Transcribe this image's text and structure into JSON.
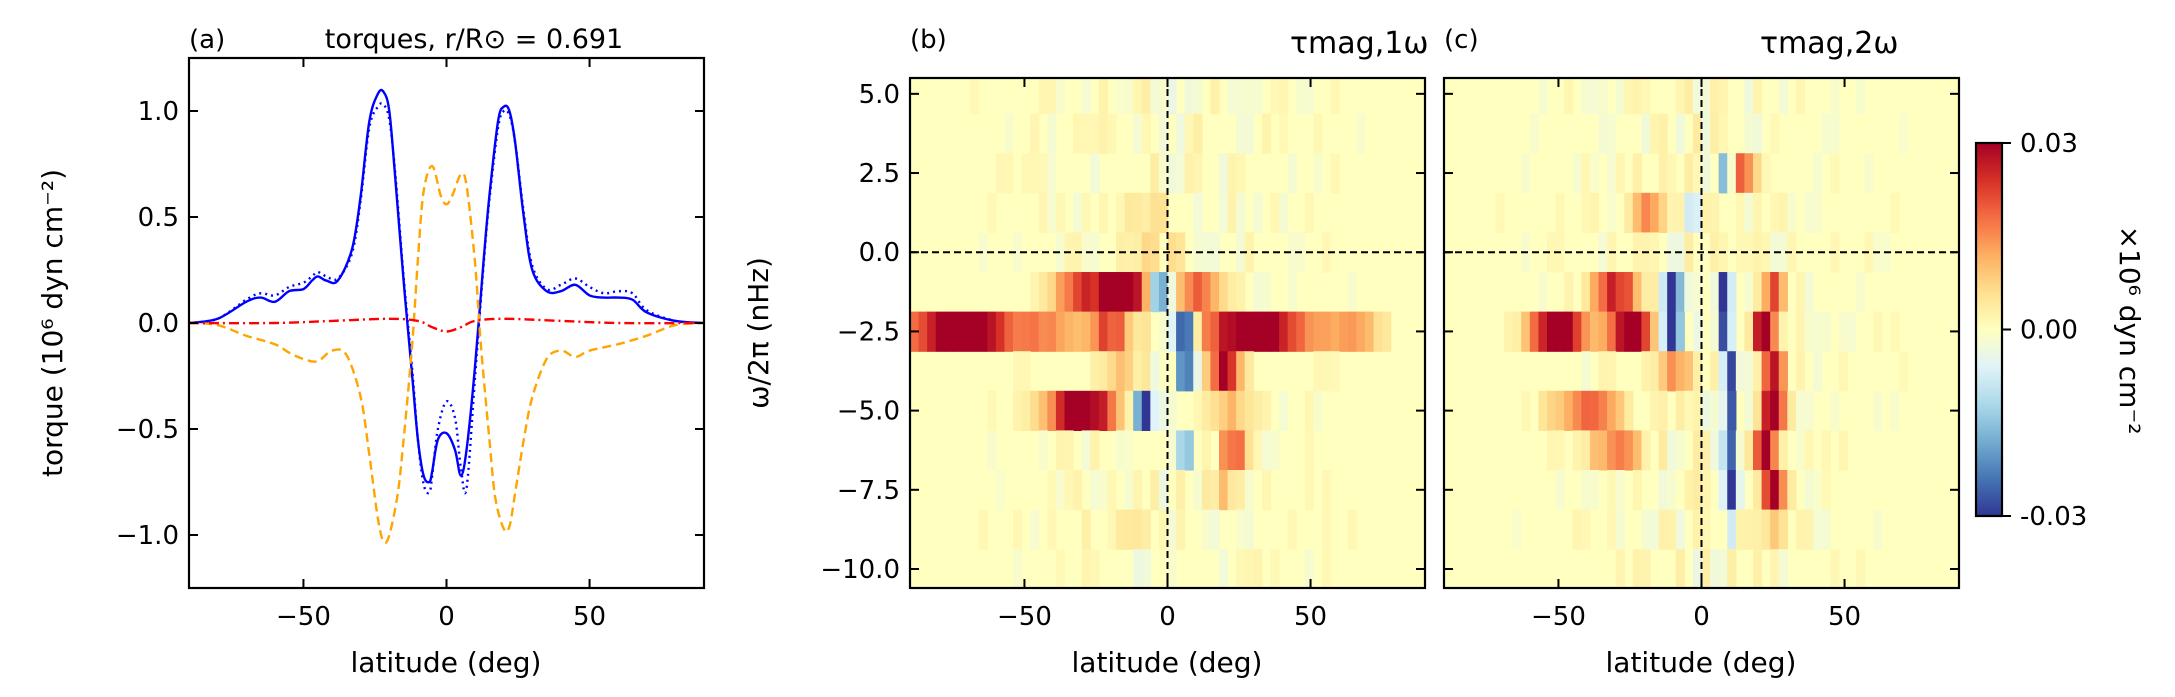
{
  "chart_data": [
    {
      "panel": "(a)",
      "type": "line",
      "title": "torques, r/R⊙ = 0.691",
      "xlabel": "latitude (deg)",
      "ylabel": "torque (10⁶ dyn cm⁻²)",
      "xlim": [
        -90,
        90
      ],
      "ylim": [
        -1.25,
        1.25
      ],
      "xticks": [
        -50,
        0,
        50
      ],
      "yticks": [
        -1.0,
        -0.5,
        0.0,
        0.5,
        1.0
      ],
      "xtick_labels": [
        "−50",
        "0",
        "50"
      ],
      "ytick_labels": [
        "−1.0",
        "−0.5",
        "0.0",
        "0.5",
        "1.0"
      ],
      "grid": false,
      "series": [
        {
          "color": "#0000ff",
          "style": "solid",
          "x": [
            -90,
            -80,
            -70,
            -65,
            -60,
            -55,
            -50,
            -47,
            -45,
            -42,
            -38,
            -33,
            -30,
            -27,
            -24,
            -22,
            -20,
            -18,
            -15,
            -12,
            -10,
            -8,
            -6,
            -5,
            -3,
            0,
            3,
            5,
            7,
            10,
            13,
            15,
            18,
            20,
            22,
            24,
            27,
            30,
            35,
            40,
            45,
            50,
            55,
            60,
            65,
            70,
            80,
            90
          ],
          "y": [
            0,
            0.02,
            0.1,
            0.12,
            0.1,
            0.15,
            0.16,
            0.2,
            0.22,
            0.2,
            0.2,
            0.35,
            0.6,
            0.95,
            1.08,
            1.09,
            1.0,
            0.7,
            0.2,
            -0.25,
            -0.55,
            -0.72,
            -0.75,
            -0.7,
            -0.55,
            -0.52,
            -0.6,
            -0.72,
            -0.6,
            -0.2,
            0.3,
            0.6,
            0.95,
            1.02,
            1.0,
            0.85,
            0.5,
            0.25,
            0.15,
            0.15,
            0.18,
            0.13,
            0.12,
            0.12,
            0.11,
            0.05,
            0.01,
            0
          ]
        },
        {
          "color": "#0000ff",
          "style": "dotted",
          "x": [
            -90,
            -80,
            -70,
            -65,
            -60,
            -55,
            -50,
            -47,
            -45,
            -42,
            -38,
            -33,
            -30,
            -27,
            -24,
            -22,
            -20,
            -18,
            -15,
            -12,
            -10,
            -8,
            -6,
            -5,
            -3,
            0,
            3,
            5,
            7,
            10,
            13,
            15,
            18,
            20,
            22,
            24,
            27,
            30,
            35,
            40,
            45,
            50,
            55,
            60,
            65,
            70,
            80,
            90
          ],
          "y": [
            0,
            0.02,
            0.11,
            0.14,
            0.13,
            0.17,
            0.19,
            0.22,
            0.24,
            0.22,
            0.21,
            0.33,
            0.58,
            0.92,
            1.02,
            1.03,
            0.96,
            0.72,
            0.22,
            -0.22,
            -0.55,
            -0.76,
            -0.8,
            -0.72,
            -0.5,
            -0.37,
            -0.45,
            -0.68,
            -0.78,
            -0.25,
            0.28,
            0.58,
            0.92,
            1.0,
            0.98,
            0.85,
            0.52,
            0.27,
            0.16,
            0.18,
            0.21,
            0.17,
            0.14,
            0.15,
            0.14,
            0.06,
            0.01,
            0
          ]
        },
        {
          "color": "#ffa500",
          "style": "dashed",
          "x": [
            -90,
            -80,
            -70,
            -60,
            -55,
            -50,
            -45,
            -40,
            -35,
            -30,
            -27,
            -24,
            -22,
            -20,
            -17,
            -15,
            -12,
            -10,
            -8,
            -5,
            -2,
            0,
            2,
            5,
            7,
            10,
            12,
            15,
            17,
            20,
            22,
            24,
            27,
            30,
            35,
            40,
            45,
            50,
            60,
            70,
            80,
            90
          ],
          "y": [
            0,
            -0.01,
            -0.06,
            -0.1,
            -0.14,
            -0.17,
            -0.18,
            -0.13,
            -0.15,
            -0.35,
            -0.62,
            -0.92,
            -1.03,
            -1.0,
            -0.8,
            -0.55,
            -0.1,
            0.3,
            0.62,
            0.74,
            0.6,
            0.56,
            0.6,
            0.7,
            0.65,
            0.28,
            -0.1,
            -0.55,
            -0.82,
            -0.97,
            -0.96,
            -0.8,
            -0.55,
            -0.35,
            -0.17,
            -0.13,
            -0.16,
            -0.13,
            -0.1,
            -0.06,
            -0.01,
            0
          ]
        },
        {
          "color": "#ff0000",
          "style": "dashdot",
          "x": [
            -90,
            -60,
            -40,
            -20,
            -10,
            -5,
            0,
            5,
            10,
            20,
            40,
            60,
            90
          ],
          "y": [
            0,
            0,
            0.01,
            0.02,
            0.01,
            -0.02,
            -0.04,
            -0.02,
            0.01,
            0.02,
            0.01,
            0,
            0
          ]
        }
      ]
    },
    {
      "panel": "(b)",
      "type": "heatmap",
      "title": "τmag,1ω",
      "xlabel": "latitude (deg)",
      "ylabel": "ω/2π (nHz)",
      "xlim": [
        -90,
        90
      ],
      "ylim": [
        -10.6,
        5.5
      ],
      "xticks": [
        -50,
        0,
        50
      ],
      "xtick_labels": [
        "−50",
        "0",
        "50"
      ],
      "yticks": [
        5.0,
        2.5,
        0.0,
        -2.5,
        -5.0,
        -7.5,
        -10.0
      ],
      "ytick_labels": [
        "5.0",
        "2.5",
        "0.0",
        "−2.5",
        "−5.0",
        "−7.5",
        "−10.0"
      ],
      "row_freqs": [
        5.0,
        3.75,
        2.5,
        1.25,
        0.0,
        -1.25,
        -2.5,
        -3.75,
        -5.0,
        -6.25,
        -7.5,
        -8.75,
        -10.0
      ],
      "features": [
        {
          "lat": -15,
          "freq": -1.25,
          "w": 12,
          "v": 0.035
        },
        {
          "lat": -32,
          "freq": -1.25,
          "w": 8,
          "v": 0.018
        },
        {
          "lat": -3,
          "freq": -1.25,
          "w": 4,
          "v": -0.035
        },
        {
          "lat": 12,
          "freq": -1.25,
          "w": 8,
          "v": 0.018
        },
        {
          "lat": -72,
          "freq": -2.5,
          "w": 20,
          "v": 0.035
        },
        {
          "lat": -40,
          "freq": -2.5,
          "w": 12,
          "v": 0.012
        },
        {
          "lat": -20,
          "freq": -2.5,
          "w": 8,
          "v": 0.02
        },
        {
          "lat": 6,
          "freq": -2.5,
          "w": 4,
          "v": -0.035
        },
        {
          "lat": 30,
          "freq": -2.5,
          "w": 20,
          "v": 0.035
        },
        {
          "lat": 65,
          "freq": -2.5,
          "w": 10,
          "v": 0.012
        },
        {
          "lat": 20,
          "freq": -3.75,
          "w": 5,
          "v": 0.03
        },
        {
          "lat": 6,
          "freq": -3.75,
          "w": 3,
          "v": -0.025
        },
        {
          "lat": -15,
          "freq": -3.75,
          "w": 6,
          "v": 0.01
        },
        {
          "lat": -30,
          "freq": -5.0,
          "w": 12,
          "v": 0.035
        },
        {
          "lat": -8,
          "freq": -5.0,
          "w": 3,
          "v": -0.035
        },
        {
          "lat": 20,
          "freq": -5.0,
          "w": 8,
          "v": 0.01
        },
        {
          "lat": 23,
          "freq": -6.25,
          "w": 5,
          "v": 0.02
        },
        {
          "lat": 6,
          "freq": -6.25,
          "w": 3,
          "v": -0.015
        },
        {
          "lat": 20,
          "freq": -7.5,
          "w": 6,
          "v": 0.008
        },
        {
          "lat": -8,
          "freq": 0.0,
          "w": 10,
          "v": 0.006
        },
        {
          "lat": -5,
          "freq": 1.25,
          "w": 8,
          "v": 0.004
        },
        {
          "lat": -15,
          "freq": -8.75,
          "w": 10,
          "v": 0.004
        }
      ]
    },
    {
      "panel": "(c)",
      "type": "heatmap",
      "title": "τmag,2ω",
      "xlabel": "latitude (deg)",
      "xlim": [
        -90,
        90
      ],
      "ylim": [
        -10.6,
        5.5
      ],
      "xticks": [
        -50,
        0,
        50
      ],
      "xtick_labels": [
        "−50",
        "0",
        "50"
      ],
      "row_freqs": [
        5.0,
        3.75,
        2.5,
        1.25,
        0.0,
        -1.25,
        -2.5,
        -3.75,
        -5.0,
        -6.25,
        -7.5,
        -8.75,
        -10.0
      ],
      "features": [
        {
          "lat": 8,
          "freq": 2.5,
          "w": 2,
          "v": -0.02
        },
        {
          "lat": 15,
          "freq": 2.5,
          "w": 4,
          "v": 0.02
        },
        {
          "lat": -18,
          "freq": 1.25,
          "w": 6,
          "v": 0.015
        },
        {
          "lat": -3,
          "freq": 1.25,
          "w": 2,
          "v": -0.01
        },
        {
          "lat": -30,
          "freq": -1.25,
          "w": 8,
          "v": 0.025
        },
        {
          "lat": -10,
          "freq": -1.25,
          "w": 3,
          "v": -0.035
        },
        {
          "lat": 8,
          "freq": -1.25,
          "w": 2,
          "v": -0.03
        },
        {
          "lat": 25,
          "freq": -1.25,
          "w": 4,
          "v": 0.02
        },
        {
          "lat": -50,
          "freq": -2.5,
          "w": 10,
          "v": 0.035
        },
        {
          "lat": -25,
          "freq": -2.5,
          "w": 8,
          "v": 0.035
        },
        {
          "lat": -10,
          "freq": -2.5,
          "w": 3,
          "v": -0.035
        },
        {
          "lat": 8,
          "freq": -2.5,
          "w": 2,
          "v": -0.03
        },
        {
          "lat": 22,
          "freq": -2.5,
          "w": 4,
          "v": 0.035
        },
        {
          "lat": -10,
          "freq": -3.75,
          "w": 8,
          "v": 0.012
        },
        {
          "lat": 10,
          "freq": -3.75,
          "w": 2,
          "v": -0.03
        },
        {
          "lat": 25,
          "freq": -3.75,
          "w": 4,
          "v": 0.03
        },
        {
          "lat": -40,
          "freq": -5.0,
          "w": 12,
          "v": 0.018
        },
        {
          "lat": 10,
          "freq": -5.0,
          "w": 2,
          "v": -0.03
        },
        {
          "lat": 25,
          "freq": -5.0,
          "w": 4,
          "v": 0.035
        },
        {
          "lat": -30,
          "freq": -6.25,
          "w": 10,
          "v": 0.015
        },
        {
          "lat": 10,
          "freq": -6.25,
          "w": 2,
          "v": -0.03
        },
        {
          "lat": 22,
          "freq": -6.25,
          "w": 4,
          "v": 0.03
        },
        {
          "lat": 10,
          "freq": -7.5,
          "w": 2,
          "v": -0.035
        },
        {
          "lat": 25,
          "freq": -7.5,
          "w": 4,
          "v": 0.035
        },
        {
          "lat": 10,
          "freq": -8.75,
          "w": 2,
          "v": -0.01
        },
        {
          "lat": 25,
          "freq": -8.75,
          "w": 5,
          "v": 0.008
        }
      ]
    }
  ],
  "colorbar": {
    "label": "×10⁶ dyn cm⁻²",
    "min": -0.03,
    "max": 0.03,
    "tick_labels": [
      "0.03",
      "0.00",
      "-0.03"
    ],
    "colormap": "RdYlBu_r",
    "stops": [
      "#313695",
      "#4575b4",
      "#74add1",
      "#abd9e9",
      "#e0f3f8",
      "#ffffbf",
      "#fee090",
      "#fdae61",
      "#f46d43",
      "#d73027",
      "#a50026"
    ]
  }
}
